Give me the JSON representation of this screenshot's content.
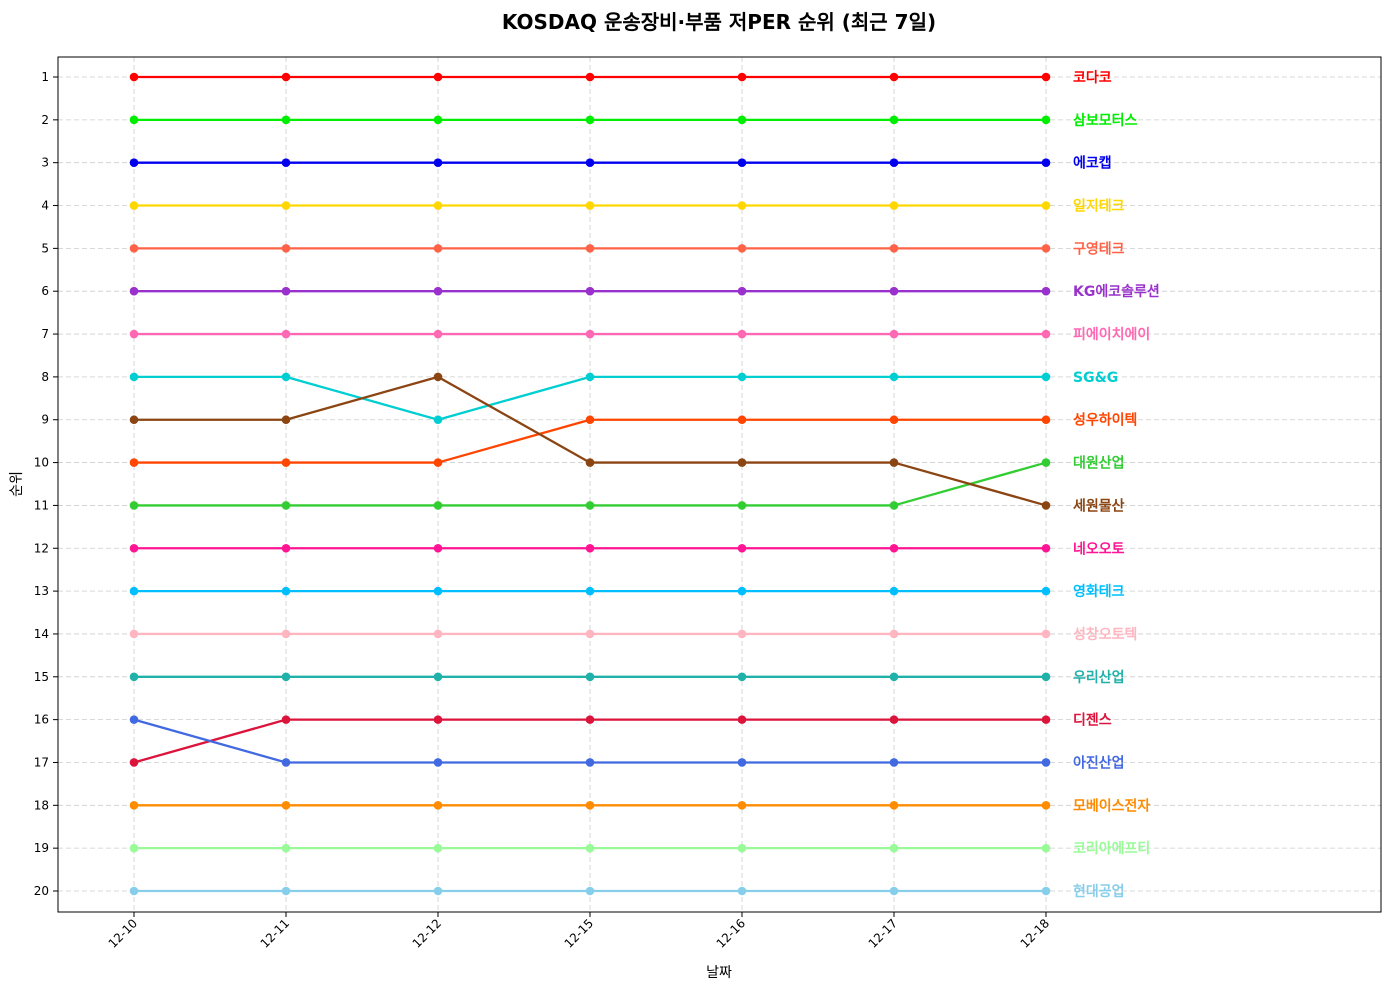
{
  "chart_data": {
    "type": "line",
    "title": "KOSDAQ 운송장비·부품 저PER 순위 (최근 7일)",
    "xlabel": "날짜",
    "ylabel": "순위",
    "categories": [
      "12-10",
      "12-11",
      "12-12",
      "12-15",
      "12-16",
      "12-17",
      "12-18"
    ],
    "ylim": [
      1,
      20
    ],
    "y_inverted": true,
    "y_ticks": [
      1,
      2,
      3,
      4,
      5,
      6,
      7,
      8,
      9,
      10,
      11,
      12,
      13,
      14,
      15,
      16,
      17,
      18,
      19,
      20
    ],
    "grid": true,
    "legend": "labels at line ends (right)",
    "series": [
      {
        "name": "코다코",
        "color": "#ff0000",
        "values": [
          1,
          1,
          1,
          1,
          1,
          1,
          1
        ]
      },
      {
        "name": "삼보모터스",
        "color": "#00ee00",
        "values": [
          2,
          2,
          2,
          2,
          2,
          2,
          2
        ]
      },
      {
        "name": "에코캡",
        "color": "#0000ee",
        "values": [
          3,
          3,
          3,
          3,
          3,
          3,
          3
        ]
      },
      {
        "name": "일지테크",
        "color": "#ffd700",
        "values": [
          4,
          4,
          4,
          4,
          4,
          4,
          4
        ]
      },
      {
        "name": "구영테크",
        "color": "#ff6347",
        "values": [
          5,
          5,
          5,
          5,
          5,
          5,
          5
        ]
      },
      {
        "name": "KG에코솔루션",
        "color": "#9932cc",
        "values": [
          6,
          6,
          6,
          6,
          6,
          6,
          6
        ]
      },
      {
        "name": "피에이치에이",
        "color": "#ff69b4",
        "values": [
          7,
          7,
          7,
          7,
          7,
          7,
          7
        ]
      },
      {
        "name": "SG&G",
        "color": "#00ced1",
        "values": [
          8,
          8,
          9,
          8,
          8,
          8,
          8
        ]
      },
      {
        "name": "성우하이텍",
        "color": "#ff4500",
        "values": [
          10,
          10,
          10,
          9,
          9,
          9,
          9
        ]
      },
      {
        "name": "대원산업",
        "color": "#32cd32",
        "values": [
          11,
          11,
          11,
          11,
          11,
          11,
          10
        ]
      },
      {
        "name": "세원물산",
        "color": "#8b4513",
        "values": [
          9,
          9,
          8,
          10,
          10,
          10,
          11
        ]
      },
      {
        "name": "네오오토",
        "color": "#ff1493",
        "values": [
          12,
          12,
          12,
          12,
          12,
          12,
          12
        ]
      },
      {
        "name": "영화테크",
        "color": "#00bfff",
        "values": [
          13,
          13,
          13,
          13,
          13,
          13,
          13
        ]
      },
      {
        "name": "성창오토텍",
        "color": "#ffb6c1",
        "values": [
          14,
          14,
          14,
          14,
          14,
          14,
          14
        ]
      },
      {
        "name": "우리산업",
        "color": "#20b2aa",
        "values": [
          15,
          15,
          15,
          15,
          15,
          15,
          15
        ]
      },
      {
        "name": "디젠스",
        "color": "#dc143c",
        "values": [
          17,
          16,
          16,
          16,
          16,
          16,
          16
        ]
      },
      {
        "name": "아진산업",
        "color": "#4169e1",
        "values": [
          16,
          17,
          17,
          17,
          17,
          17,
          17
        ]
      },
      {
        "name": "모베이스전자",
        "color": "#ff8c00",
        "values": [
          18,
          18,
          18,
          18,
          18,
          18,
          18
        ]
      },
      {
        "name": "코리아에프티",
        "color": "#98fb98",
        "values": [
          19,
          19,
          19,
          19,
          19,
          19,
          19
        ]
      },
      {
        "name": "현대공업",
        "color": "#87ceeb",
        "values": [
          20,
          20,
          20,
          20,
          20,
          20,
          20
        ]
      }
    ]
  }
}
